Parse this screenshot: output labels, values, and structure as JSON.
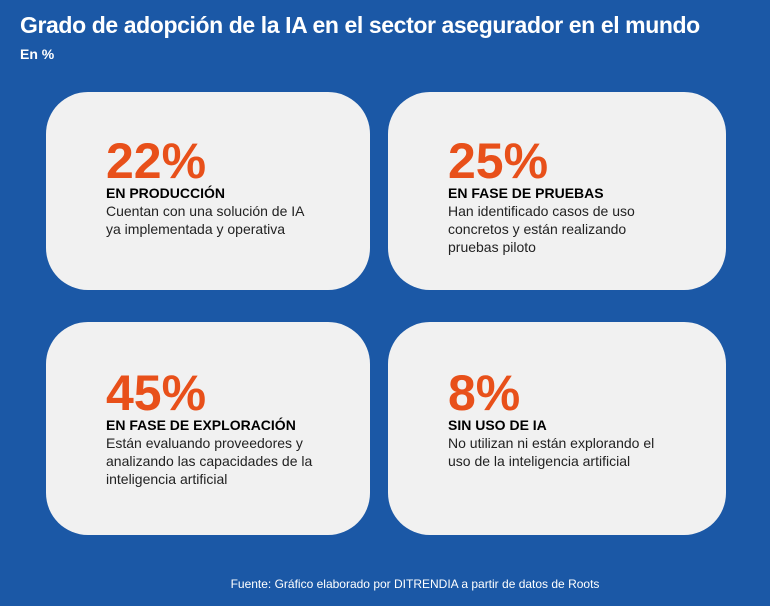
{
  "header": {
    "title": "Grado de adopción de la IA en el sector asegurador en el mundo",
    "subtitle": "En %"
  },
  "cards": [
    {
      "value": "22%",
      "label": "EN PRODUCCIÓN",
      "description": "Cuentan con una solución de IA ya implementada y operativa"
    },
    {
      "value": "25%",
      "label": "EN FASE DE PRUEBAS",
      "description": "Han identificado casos de uso concretos y están realizando pruebas piloto"
    },
    {
      "value": "45%",
      "label": "EN FASE DE EXPLORACIÓN",
      "description": "Están evaluando proveedores y analizando las capacidades de la inteligencia artificial"
    },
    {
      "value": "8%",
      "label": "SIN USO DE IA",
      "description": "No utilizan ni están explorando el uso de la inteligencia artificial"
    }
  ],
  "footer": {
    "source": "Fuente: Gráfico elaborado por DITRENDIA a partir de datos de Roots"
  }
}
